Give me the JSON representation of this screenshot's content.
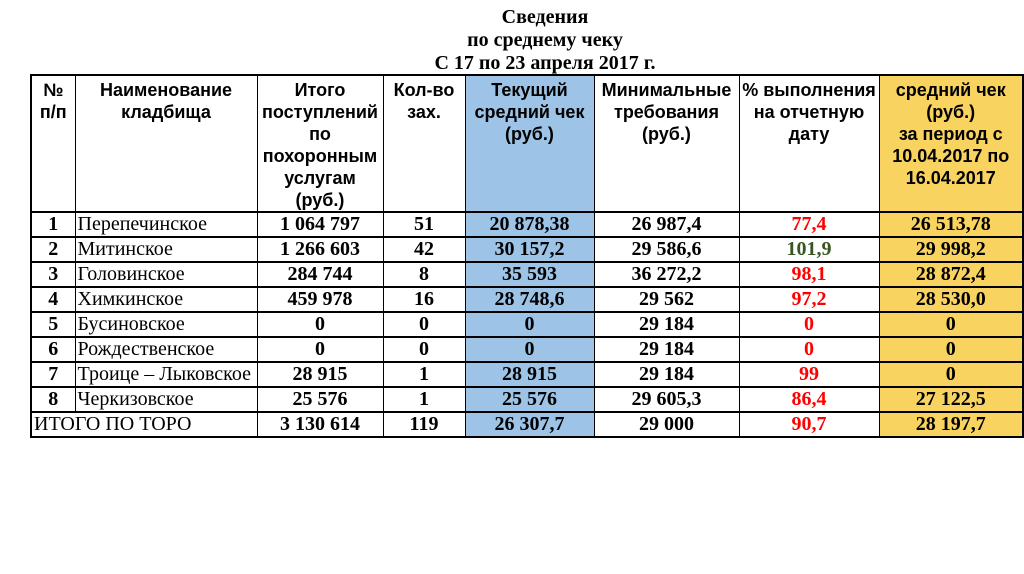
{
  "title": {
    "lines": [
      "Сведения",
      "по среднему чеку",
      "С 17 по 23 апреля 2017 г."
    ]
  },
  "table": {
    "columns": [
      {
        "label": "№\nп/п"
      },
      {
        "label": "Наименование\nкладбища"
      },
      {
        "label": "Итого\nпоступлений\nпо\nпохоронным\nуслугам\n(руб.)"
      },
      {
        "label": "Кол-во\nзах."
      },
      {
        "label": "Текущий\nсредний чек\n(руб.)",
        "highlight": "blue"
      },
      {
        "label": "Минимальные\nтребования\n(руб.)"
      },
      {
        "label": "% выполнения\nна отчетную\nдату"
      },
      {
        "label": "средний чек\n(руб.)\nза период с\n10.04.2017 по\n16.04.2017",
        "highlight": "yellow"
      }
    ],
    "rows": [
      {
        "num": "1",
        "name": "Перепечинское",
        "income": "1 064 797",
        "burials": "51",
        "current_avg": "20 878,38",
        "min_req": "26 987,4",
        "percent": "77,4",
        "percent_status": "negative",
        "prev_avg": "26 513,78"
      },
      {
        "num": "2",
        "name": "Митинское",
        "income": "1 266 603",
        "burials": "42",
        "current_avg": "30 157,2",
        "min_req": "29 586,6",
        "percent": "101,9",
        "percent_status": "positive",
        "prev_avg": "29 998,2"
      },
      {
        "num": "3",
        "name": "Головинское",
        "income": "284 744",
        "burials": "8",
        "current_avg": "35 593",
        "min_req": "36 272,2",
        "percent": "98,1",
        "percent_status": "negative",
        "prev_avg": "28 872,4"
      },
      {
        "num": "4",
        "name": "Химкинское",
        "income": "459 978",
        "burials": "16",
        "current_avg": "28 748,6",
        "min_req": "29 562",
        "percent": "97,2",
        "percent_status": "negative",
        "prev_avg": "28 530,0"
      },
      {
        "num": "5",
        "name": "Бусиновское",
        "income": "0",
        "burials": "0",
        "current_avg": "0",
        "min_req": "29 184",
        "percent": "0",
        "percent_status": "negative",
        "prev_avg": "0"
      },
      {
        "num": "6",
        "name": "Рождественское",
        "income": "0",
        "burials": "0",
        "current_avg": "0",
        "min_req": "29 184",
        "percent": "0",
        "percent_status": "negative",
        "prev_avg": "0"
      },
      {
        "num": "7",
        "name": "Троице – Лыковское",
        "income": "28 915",
        "burials": "1",
        "current_avg": "28 915",
        "min_req": "29 184",
        "percent": "99",
        "percent_status": "negative",
        "prev_avg": "0"
      },
      {
        "num": "8",
        "name": "Черкизовское",
        "income": "25 576",
        "burials": "1",
        "current_avg": "25 576",
        "min_req": "29 605,3",
        "percent": "86,4",
        "percent_status": "negative",
        "prev_avg": "27 122,5"
      }
    ],
    "totals": {
      "label": "ИТОГО ПО ТОРО",
      "income": "3 130 614",
      "burials": "119",
      "current_avg": "26 307,7",
      "min_req": "29 000",
      "percent": "90,7",
      "percent_status": "negative",
      "prev_avg": "28 197,7"
    }
  },
  "colors": {
    "highlight_blue": "#9DC3E6",
    "highlight_yellow": "#F9D35F",
    "negative": "#FF0000",
    "positive": "#375623",
    "border": "#000000",
    "text": "#000000"
  }
}
